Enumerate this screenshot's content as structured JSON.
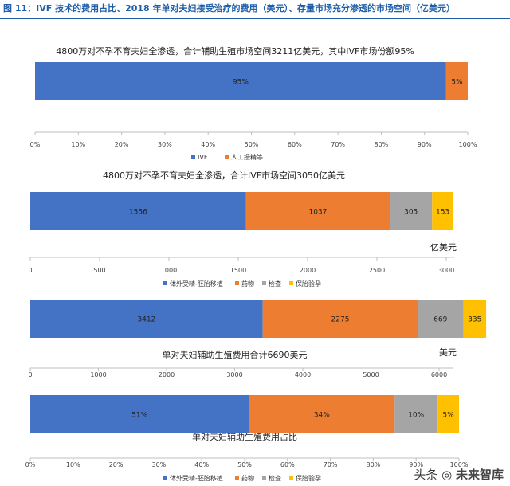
{
  "figure_title": "图 11：IVF 技术的费用占比、2018 年单对夫妇接受治疗的费用（美元）、存量市场充分渗透的市场空间（亿美元）",
  "watermark": {
    "source": "头条",
    "brand": "未来智库"
  },
  "colors": {
    "blue": "#4472C4",
    "orange": "#ED7D31",
    "gray": "#A5A5A5",
    "yellow": "#FFC000",
    "axis": "#bfbfbf"
  },
  "chart_data": [
    {
      "type": "bar",
      "orientation": "horizontal-stacked",
      "title": "4800万对不孕不育夫妇全渗透，合计辅助生殖市场空间3211亿美元，其中IVF市场份额95%",
      "unit": "",
      "xlim": [
        0,
        100
      ],
      "ticks": [
        "0%",
        "10%",
        "20%",
        "30%",
        "40%",
        "50%",
        "60%",
        "70%",
        "80%",
        "90%",
        "100%"
      ],
      "series": [
        {
          "name": "IVF",
          "value": 95,
          "label": "95%",
          "color": "#4472C4"
        },
        {
          "name": "人工授精等",
          "value": 5,
          "label": "5%",
          "color": "#ED7D31"
        }
      ]
    },
    {
      "type": "bar",
      "orientation": "horizontal-stacked",
      "title": "4800万对不孕不育夫妇全渗透，合计IVF市场空间3050亿美元",
      "unit": "亿美元",
      "xlim": [
        0,
        3000
      ],
      "ticks": [
        "0",
        "500",
        "1000",
        "1500",
        "2000",
        "2500",
        "3000"
      ],
      "series": [
        {
          "name": "体外受精-胚胎移植",
          "value": 1556,
          "label": "1556",
          "color": "#4472C4"
        },
        {
          "name": "药物",
          "value": 1037,
          "label": "1037",
          "color": "#ED7D31"
        },
        {
          "name": "检查",
          "value": 305,
          "label": "305",
          "color": "#A5A5A5"
        },
        {
          "name": "保胎验孕",
          "value": 153,
          "label": "153",
          "color": "#FFC000"
        }
      ]
    },
    {
      "type": "bar",
      "orientation": "horizontal-stacked",
      "title": "单对夫妇辅助生殖费用合计6690美元",
      "unit": "美元",
      "xlim": [
        0,
        6000
      ],
      "ticks": [
        "0",
        "1000",
        "2000",
        "3000",
        "4000",
        "5000",
        "6000"
      ],
      "series": [
        {
          "name": "体外受精-胚胎移植",
          "value": 3412,
          "label": "3412",
          "color": "#4472C4"
        },
        {
          "name": "药物",
          "value": 2275,
          "label": "2275",
          "color": "#ED7D31"
        },
        {
          "name": "检查",
          "value": 669,
          "label": "669",
          "color": "#A5A5A5"
        },
        {
          "name": "保胎验孕",
          "value": 335,
          "label": "335",
          "color": "#FFC000"
        }
      ]
    },
    {
      "type": "bar",
      "orientation": "horizontal-stacked",
      "title": "单对夫妇辅助生殖费用占比",
      "unit": "",
      "xlim": [
        0,
        100
      ],
      "ticks": [
        "0%",
        "10%",
        "20%",
        "30%",
        "40%",
        "50%",
        "60%",
        "70%",
        "80%",
        "90%",
        "100%"
      ],
      "series": [
        {
          "name": "体外受精-胚胎移植",
          "value": 51,
          "label": "51%",
          "color": "#4472C4"
        },
        {
          "name": "药物",
          "value": 34,
          "label": "34%",
          "color": "#ED7D31"
        },
        {
          "name": "检查",
          "value": 10,
          "label": "10%",
          "color": "#A5A5A5"
        },
        {
          "name": "保胎验孕",
          "value": 5,
          "label": "5%",
          "color": "#FFC000"
        }
      ]
    }
  ]
}
